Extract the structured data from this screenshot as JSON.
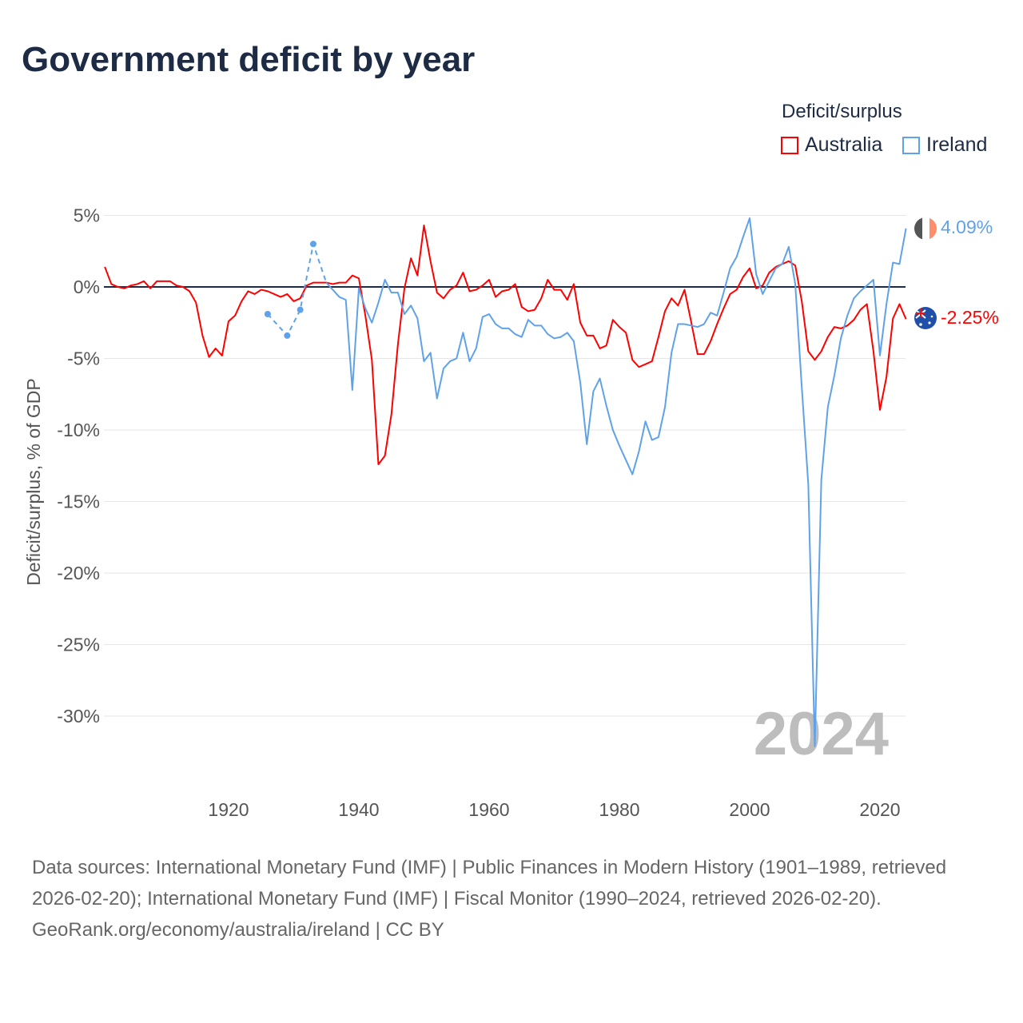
{
  "title": "Government deficit by year",
  "legend": {
    "title": "Deficit/surplus",
    "items": [
      {
        "label": "Australia",
        "color": "#ff0000"
      },
      {
        "label": "Ireland",
        "color": "#5fa2e8"
      }
    ]
  },
  "watermark_year": "2024",
  "end_labels": {
    "ireland": "4.09%",
    "australia": "-2.25%"
  },
  "footer": {
    "sources": "Data sources: International Monetary Fund (IMF) | Public Finances in Modern History (1901–1989, retrieved 2026-02-20); International Monetary Fund (IMF) | Fiscal Monitor (1990–2024, retrieved 2026-02-20).",
    "credit": "GeoRank.org/economy/australia/ireland | CC BY"
  },
  "chart_data": {
    "type": "line",
    "title": "Government deficit by year",
    "xlabel": "",
    "ylabel": "Deficit/surplus, % of GDP",
    "xlim": [
      1901,
      2024
    ],
    "ylim": [
      -33,
      6
    ],
    "x_ticks": [
      "1920",
      "1940",
      "1960",
      "1980",
      "2000",
      "2020"
    ],
    "x_tick_values": [
      1920,
      1940,
      1960,
      1980,
      2000,
      2020
    ],
    "y_ticks": [
      "5%",
      "0%",
      "-5%",
      "-10%",
      "-15%",
      "-20%",
      "-25%",
      "-30%"
    ],
    "y_tick_values": [
      5,
      0,
      -5,
      -10,
      -15,
      -20,
      -25,
      -30
    ],
    "legend_position": "top-right",
    "series": [
      {
        "name": "Australia",
        "color": "#ff0000",
        "start_year": 1901,
        "values": [
          1.4,
          0.2,
          0.0,
          -0.1,
          0.1,
          0.2,
          0.4,
          -0.1,
          0.4,
          0.4,
          0.4,
          0.1,
          0.0,
          -0.3,
          -1.1,
          -3.4,
          -4.9,
          -4.3,
          -4.8,
          -2.4,
          -2.0,
          -1.0,
          -0.3,
          -0.5,
          -0.2,
          -0.3,
          -0.5,
          -0.7,
          -0.5,
          -1.0,
          -0.8,
          0.1,
          0.3,
          0.3,
          0.3,
          0.2,
          0.3,
          0.3,
          0.8,
          0.6,
          -2.0,
          -5.1,
          -12.4,
          -11.8,
          -8.9,
          -4.0,
          -0.1,
          2.0,
          0.8,
          4.3,
          1.8,
          -0.4,
          -0.8,
          -0.2,
          0.1,
          1.0,
          -0.3,
          -0.2,
          0.1,
          0.5,
          -0.7,
          -0.3,
          -0.2,
          0.2,
          -1.4,
          -1.7,
          -1.6,
          -0.8,
          0.5,
          -0.2,
          -0.2,
          -0.9,
          0.2,
          -2.5,
          -3.4,
          -3.4,
          -4.3,
          -4.1,
          -2.3,
          -2.8,
          -3.2,
          -5.1,
          -5.6,
          -5.4,
          -5.2,
          -3.5,
          -1.7,
          -0.8,
          -1.3,
          -0.2,
          -2.4,
          -4.7,
          -4.7,
          -3.8,
          -2.6,
          -1.5,
          -0.5,
          -0.2,
          0.7,
          1.3,
          -0.1,
          0.1,
          1.0,
          1.4,
          1.6,
          1.8,
          1.5,
          -1.0,
          -4.5,
          -5.1,
          -4.5,
          -3.5,
          -2.8,
          -2.9,
          -2.7,
          -2.3,
          -1.6,
          -1.2,
          -4.5,
          -8.6,
          -6.3,
          -2.2,
          -1.2,
          -2.25
        ]
      },
      {
        "name": "Ireland",
        "color": "#5fa2e8",
        "start_year": 1935,
        "sparse_points": [
          {
            "x": 1926,
            "y": -1.9
          },
          {
            "x": 1929,
            "y": -3.4
          },
          {
            "x": 1931,
            "y": -1.6
          },
          {
            "x": 1933,
            "y": 3.0
          }
        ],
        "values": [
          0.3,
          -0.2,
          -0.7,
          -0.9,
          -7.2,
          -0.1,
          -1.5,
          -2.5,
          -1.1,
          0.5,
          -0.4,
          -0.4,
          -1.9,
          -1.3,
          -2.2,
          -5.2,
          -4.6,
          -7.8,
          -5.7,
          -5.2,
          -5.0,
          -3.2,
          -5.2,
          -4.3,
          -2.1,
          -1.9,
          -2.6,
          -2.9,
          -2.9,
          -3.3,
          -3.5,
          -2.3,
          -2.7,
          -2.7,
          -3.3,
          -3.6,
          -3.5,
          -3.2,
          -3.8,
          -6.7,
          -11.0,
          -7.3,
          -6.4,
          -8.3,
          -10.0,
          -11.1,
          -12.1,
          -13.1,
          -11.5,
          -9.4,
          -10.7,
          -10.5,
          -8.4,
          -4.6,
          -2.6,
          -2.6,
          -2.7,
          -2.8,
          -2.6,
          -1.8,
          -2.0,
          -0.4,
          1.3,
          2.1,
          3.5,
          4.8,
          0.9,
          -0.5,
          0.4,
          1.3,
          1.6,
          2.8,
          0.2,
          -7.0,
          -13.8,
          -32.1,
          -13.5,
          -8.4,
          -6.2,
          -3.6,
          -2.0,
          -0.8,
          -0.3,
          0.1,
          0.5,
          -4.8,
          -1.2,
          1.7,
          1.6,
          4.09
        ]
      }
    ]
  }
}
